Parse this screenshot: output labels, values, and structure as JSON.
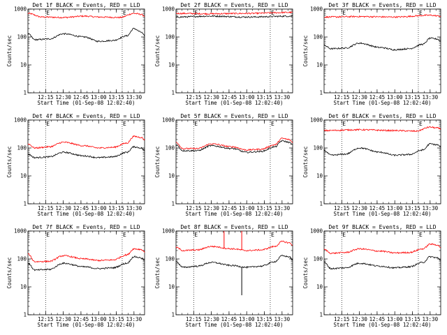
{
  "chart_data": {
    "type": "line",
    "y_scale": "log",
    "ylim": [
      1,
      1000
    ],
    "y_ticks": [
      "1",
      "10",
      "100",
      "1000"
    ],
    "x_ticks": [
      "12:15",
      "12:30",
      "12:45",
      "13:00",
      "13:15",
      "13:30"
    ],
    "x_range_minutes": [
      12.0,
      13.65
    ],
    "dotted_lines_at": [
      "12:15",
      "13:20"
    ],
    "xlabel": "Start Time (01-Sep-08 12:02:40)",
    "ylabel": "Counts/sec",
    "colors": {
      "events": "#000000",
      "lld": "#ff0000"
    },
    "series_names": [
      "BLACK = Events",
      "RED = LLD"
    ],
    "panels": [
      {
        "title": "Det 1f BLACK = Events, RED = LLD",
        "events": {
          "anchors_h": [
            12.0,
            12.1,
            12.3,
            12.5,
            12.8,
            13.0,
            13.2,
            13.4,
            13.5,
            13.6,
            13.65
          ],
          "values": [
            130,
            80,
            85,
            130,
            100,
            70,
            75,
            110,
            200,
            150,
            110
          ]
        },
        "lld": {
          "anchors_h": [
            12.0,
            12.2,
            12.5,
            12.8,
            13.0,
            13.3,
            13.5,
            13.6,
            13.65
          ],
          "values": [
            700,
            520,
            500,
            560,
            520,
            500,
            700,
            650,
            560
          ]
        }
      },
      {
        "title": "Det 2f BLACK = Events, RED = LLD",
        "events": {
          "anchors_h": [
            12.0,
            12.5,
            13.0,
            13.65
          ],
          "values": [
            520,
            560,
            520,
            560
          ]
        },
        "lld": {
          "anchors_h": [
            12.0,
            12.5,
            13.0,
            13.65
          ],
          "values": [
            700,
            680,
            700,
            760
          ]
        }
      },
      {
        "title": "Det 3f BLACK = Events, RED = LLD",
        "events": {
          "anchors_h": [
            12.0,
            12.1,
            12.3,
            12.5,
            12.8,
            13.0,
            13.2,
            13.4,
            13.5,
            13.6,
            13.65
          ],
          "values": [
            50,
            38,
            40,
            60,
            42,
            35,
            38,
            55,
            90,
            85,
            70
          ]
        },
        "lld": {
          "anchors_h": [
            12.0,
            12.5,
            13.0,
            13.5,
            13.65
          ],
          "values": [
            520,
            540,
            520,
            600,
            560
          ]
        }
      },
      {
        "title": "Det 4f BLACK = Events, RED = LLD",
        "events": {
          "anchors_h": [
            12.0,
            12.1,
            12.3,
            12.5,
            12.8,
            13.0,
            13.2,
            13.4,
            13.5,
            13.6,
            13.65
          ],
          "values": [
            60,
            45,
            48,
            70,
            52,
            45,
            48,
            70,
            110,
            100,
            80
          ]
        },
        "lld": {
          "anchors_h": [
            12.0,
            12.1,
            12.3,
            12.5,
            12.8,
            13.0,
            13.2,
            13.4,
            13.5,
            13.6,
            13.65
          ],
          "values": [
            140,
            100,
            110,
            160,
            120,
            100,
            105,
            150,
            260,
            240,
            200
          ]
        }
      },
      {
        "title": "Det 5f BLACK = Events, RED = LLD",
        "events": {
          "anchors_h": [
            12.0,
            12.1,
            12.3,
            12.5,
            12.8,
            13.0,
            13.2,
            13.4,
            13.5,
            13.6,
            13.65
          ],
          "values": [
            130,
            80,
            80,
            120,
            95,
            70,
            75,
            110,
            180,
            160,
            130
          ]
        },
        "lld": {
          "anchors_h": [
            12.0,
            12.1,
            12.3,
            12.5,
            12.8,
            13.0,
            13.2,
            13.4,
            13.5,
            13.6,
            13.65
          ],
          "values": [
            160,
            95,
            95,
            140,
            110,
            85,
            90,
            130,
            220,
            200,
            160
          ]
        }
      },
      {
        "title": "Det 6f BLACK = Events, RED = LLD",
        "events": {
          "anchors_h": [
            12.0,
            12.1,
            12.3,
            12.5,
            12.8,
            13.0,
            13.2,
            13.4,
            13.5,
            13.6,
            13.65
          ],
          "values": [
            80,
            55,
            60,
            100,
            70,
            55,
            58,
            85,
            140,
            130,
            110
          ]
        },
        "lld": {
          "anchors_h": [
            12.0,
            12.5,
            13.0,
            13.3,
            13.5,
            13.6,
            13.65
          ],
          "values": [
            420,
            450,
            420,
            400,
            560,
            520,
            480
          ]
        }
      },
      {
        "title": "Det 7f BLACK = Events, RED = LLD",
        "events": {
          "anchors_h": [
            12.0,
            12.1,
            12.3,
            12.5,
            12.8,
            13.0,
            13.2,
            13.4,
            13.5,
            13.6,
            13.65
          ],
          "values": [
            70,
            40,
            42,
            70,
            52,
            45,
            48,
            70,
            120,
            110,
            90
          ]
        },
        "lld": {
          "anchors_h": [
            12.0,
            12.1,
            12.3,
            12.5,
            12.8,
            13.0,
            13.2,
            13.4,
            13.5,
            13.6,
            13.65
          ],
          "values": [
            150,
            80,
            82,
            130,
            100,
            88,
            92,
            140,
            230,
            220,
            180
          ]
        }
      },
      {
        "title": "Det 8f BLACK = Events, RED = LLD",
        "events": {
          "anchors_h": [
            12.0,
            12.1,
            12.3,
            12.5,
            12.8,
            13.0,
            13.2,
            13.4,
            13.5,
            13.6,
            13.65
          ],
          "values": [
            80,
            50,
            55,
            75,
            58,
            50,
            55,
            80,
            130,
            120,
            95
          ]
        },
        "lld": {
          "anchors_h": [
            12.0,
            12.1,
            12.3,
            12.5,
            12.8,
            13.0,
            13.2,
            13.4,
            13.5,
            13.6,
            13.65
          ],
          "values": [
            260,
            200,
            210,
            280,
            230,
            200,
            210,
            280,
            420,
            380,
            320
          ]
        },
        "spikes": [
          {
            "x_h": 12.68,
            "lld_to": 1000
          },
          {
            "x_h": 12.93,
            "lld_to": 1000,
            "events_to": 5
          }
        ]
      },
      {
        "title": "Det 9f BLACK = Events, RED = LLD",
        "events": {
          "anchors_h": [
            12.0,
            12.1,
            12.3,
            12.5,
            12.8,
            13.0,
            13.2,
            13.4,
            13.5,
            13.6,
            13.65
          ],
          "values": [
            75,
            45,
            48,
            70,
            55,
            48,
            52,
            75,
            120,
            110,
            90
          ]
        },
        "lld": {
          "anchors_h": [
            12.0,
            12.1,
            12.3,
            12.5,
            12.8,
            13.0,
            13.2,
            13.4,
            13.5,
            13.6,
            13.65
          ],
          "values": [
            220,
            160,
            170,
            230,
            190,
            165,
            170,
            230,
            340,
            320,
            260
          ]
        }
      }
    ]
  }
}
